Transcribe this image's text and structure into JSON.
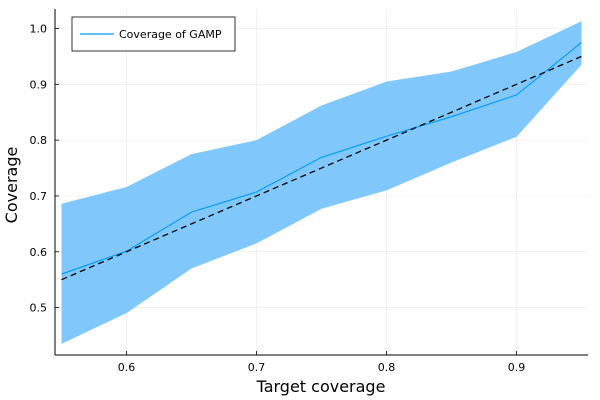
{
  "chart_data": {
    "type": "line",
    "title": "",
    "xlabel": "Target coverage",
    "ylabel": "Coverage",
    "xlim": [
      0.545,
      0.955
    ],
    "ylim": [
      0.415,
      1.035
    ],
    "xticks": [
      0.6,
      0.7,
      0.8,
      0.9
    ],
    "xtick_labels": [
      "0.6",
      "0.7",
      "0.8",
      "0.9"
    ],
    "yticks": [
      0.5,
      0.6,
      0.7,
      0.8,
      0.9,
      1.0
    ],
    "ytick_labels": [
      "0.5",
      "0.6",
      "0.7",
      "0.8",
      "0.9",
      "1.0"
    ],
    "grid": true,
    "legend_position": "top-left",
    "x": [
      0.55,
      0.6,
      0.65,
      0.7,
      0.75,
      0.8,
      0.85,
      0.9,
      0.95
    ],
    "series": [
      {
        "name": "Coverage of GAMP",
        "color": "#009AFA",
        "values": [
          0.56,
          0.601,
          0.671,
          0.707,
          0.769,
          0.807,
          0.842,
          0.881,
          0.975
        ]
      },
      {
        "name": "",
        "color": "#000000",
        "style": "dashed",
        "values": [
          0.55,
          0.6,
          0.65,
          0.7,
          0.75,
          0.8,
          0.85,
          0.9,
          0.95
        ]
      }
    ],
    "band": {
      "color": "#80C8FB",
      "upper": [
        0.686,
        0.716,
        0.775,
        0.8,
        0.862,
        0.905,
        0.923,
        0.958,
        1.013
      ],
      "lower": [
        0.435,
        0.49,
        0.57,
        0.615,
        0.677,
        0.71,
        0.76,
        0.806,
        0.935
      ]
    }
  }
}
